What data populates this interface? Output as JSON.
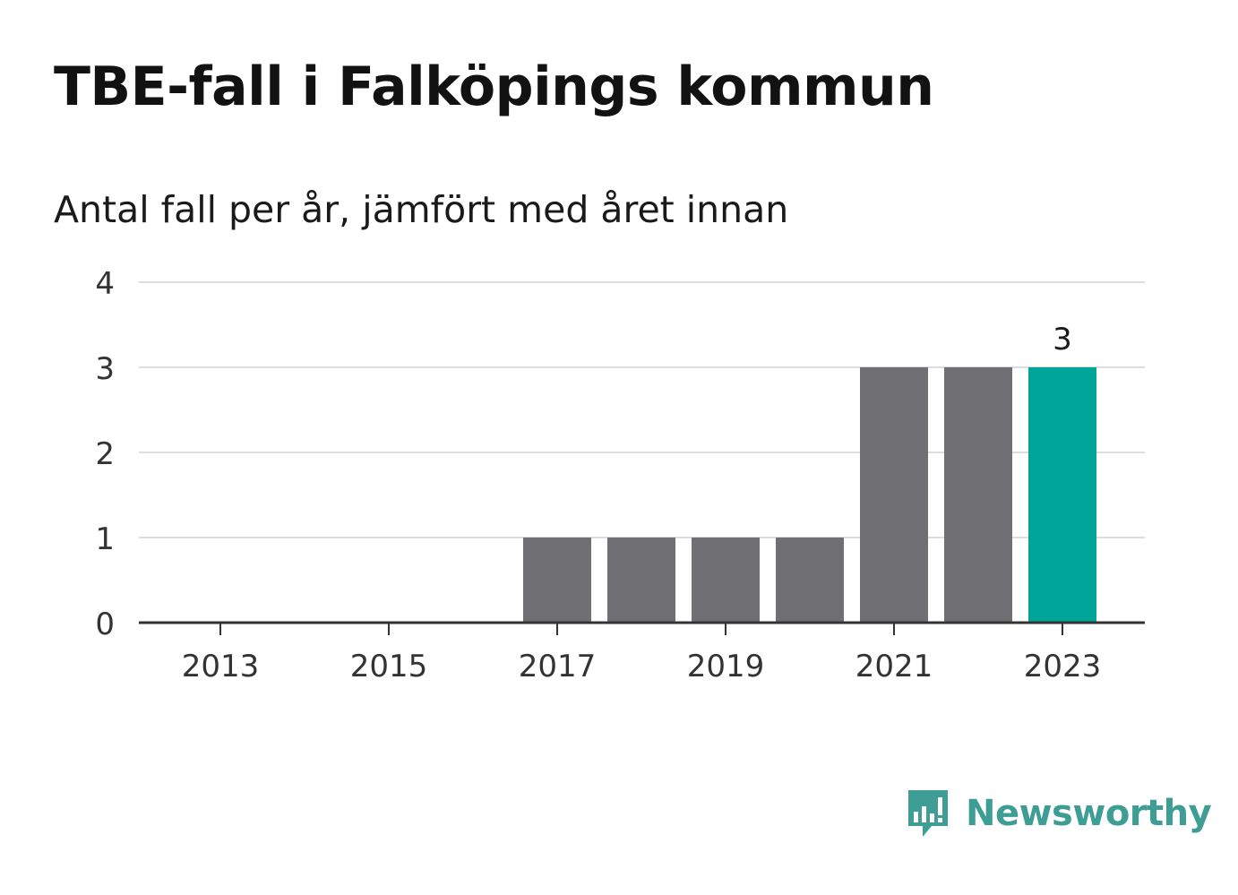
{
  "header": {
    "title": "TBE-fall i Falköpings kommun",
    "subtitle": "Antal fall per år, jämfört med året innan"
  },
  "brand": {
    "name": "Newsworthy",
    "icon": "newsworthy-logo-icon",
    "color": "#3e9e95"
  },
  "colors": {
    "bar": "#706f74",
    "highlight": "#00a59a",
    "grid": "#dddddd",
    "axis": "#333333"
  },
  "chart_data": {
    "type": "bar",
    "title": "TBE-fall i Falköpings kommun",
    "subtitle": "Antal fall per år, jämfört med året innan",
    "categories": [
      "2013",
      "2014",
      "2015",
      "2016",
      "2017",
      "2018",
      "2019",
      "2020",
      "2021",
      "2022",
      "2023"
    ],
    "values": [
      0,
      0,
      0,
      0,
      1,
      1,
      1,
      1,
      3,
      3,
      3
    ],
    "x_tick_labels": [
      "2013",
      "2015",
      "2017",
      "2019",
      "2021",
      "2023"
    ],
    "y_ticks": [
      "0",
      "1",
      "2",
      "3",
      "4"
    ],
    "ylim": [
      0,
      4
    ],
    "highlight_category": "2023",
    "data_labels": [
      {
        "category": "2023",
        "label": "3"
      }
    ],
    "grid": true,
    "legend": "none"
  }
}
